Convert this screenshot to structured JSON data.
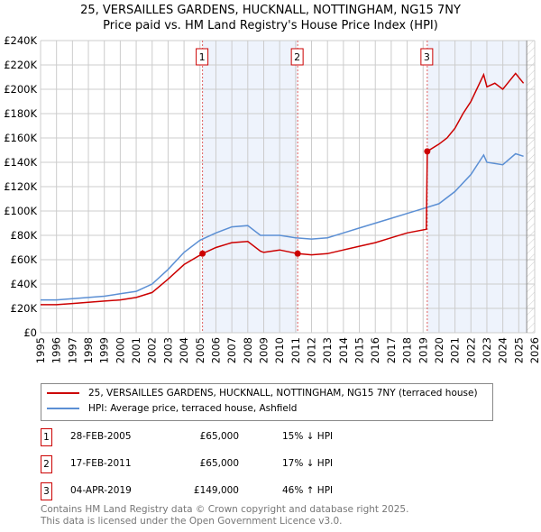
{
  "chart_data": {
    "type": "line",
    "title": "25, VERSAILLES GARDENS, HUCKNALL, NOTTINGHAM, NG15 7NY",
    "subtitle": "Price paid vs. HM Land Registry's House Price Index (HPI)",
    "xlim": [
      1995,
      2026
    ],
    "ylim": [
      0,
      240000
    ],
    "x_ticks": [
      "1995",
      "1996",
      "1997",
      "1998",
      "1999",
      "2000",
      "2001",
      "2002",
      "2003",
      "2004",
      "2005",
      "2006",
      "2007",
      "2008",
      "2009",
      "2010",
      "2011",
      "2012",
      "2013",
      "2014",
      "2015",
      "2016",
      "2017",
      "2018",
      "2019",
      "2020",
      "2021",
      "2022",
      "2023",
      "2024",
      "2025",
      "2026"
    ],
    "y_ticks": [
      "£0",
      "£20K",
      "£40K",
      "£60K",
      "£80K",
      "£100K",
      "£120K",
      "£140K",
      "£160K",
      "£180K",
      "£200K",
      "£220K",
      "£240K"
    ],
    "series": [
      {
        "name": "25, VERSAILLES GARDENS, HUCKNALL, NOTTINGHAM, NG15 7NY (terraced house)",
        "color": "#cc0000",
        "x": [
          1995,
          1996,
          1997,
          1998,
          1999,
          2000,
          2001,
          2002,
          2003,
          2004,
          2005.16,
          2006,
          2007,
          2008,
          2008.8,
          2009,
          2010,
          2011.13,
          2012,
          2013,
          2014,
          2015,
          2016,
          2017,
          2018,
          2019.2,
          2019.26,
          2020,
          2020.5,
          2021,
          2021.5,
          2022,
          2022.8,
          2023,
          2023.5,
          2024,
          2024.8,
          2025.3
        ],
        "y": [
          23000,
          23000,
          24000,
          25000,
          26000,
          27000,
          29000,
          33000,
          44000,
          56000,
          65000,
          70000,
          74000,
          75000,
          67000,
          66000,
          68000,
          65000,
          64000,
          65000,
          68000,
          71000,
          74000,
          78000,
          82000,
          85000,
          149000,
          155000,
          160000,
          168000,
          180000,
          190000,
          212000,
          202000,
          205000,
          200000,
          213000,
          205000
        ]
      },
      {
        "name": "HPI: Average price, terraced house, Ashfield",
        "color": "#5b8fd4",
        "x": [
          1995,
          1996,
          1997,
          1998,
          1999,
          2000,
          2001,
          2002,
          2003,
          2004,
          2005,
          2006,
          2007,
          2008,
          2008.8,
          2009,
          2010,
          2011,
          2012,
          2013,
          2014,
          2015,
          2016,
          2017,
          2018,
          2019,
          2020,
          2021,
          2022,
          2022.8,
          2023,
          2024,
          2024.8,
          2025.3
        ],
        "y": [
          27000,
          27000,
          28000,
          29000,
          30000,
          32000,
          34000,
          40000,
          52000,
          66000,
          76000,
          82000,
          87000,
          88000,
          80000,
          80000,
          80000,
          78000,
          77000,
          78000,
          82000,
          86000,
          90000,
          94000,
          98000,
          102000,
          106000,
          116000,
          130000,
          146000,
          140000,
          138000,
          147000,
          145000
        ]
      }
    ],
    "sales": [
      {
        "label": "1",
        "x": 2005.16,
        "y": 65000,
        "date": "28-FEB-2005",
        "price": "£65,000",
        "delta": "15% ↓ HPI"
      },
      {
        "label": "2",
        "x": 2011.13,
        "y": 65000,
        "date": "17-FEB-2011",
        "price": "£65,000",
        "delta": "17% ↓ HPI"
      },
      {
        "label": "3",
        "x": 2019.26,
        "y": 149000,
        "date": "04-APR-2019",
        "price": "£149,000",
        "delta": "46% ↑ HPI"
      }
    ]
  },
  "footer": [
    "Contains HM Land Registry data © Crown copyright and database right 2025.",
    "This data is licensed under the Open Government Licence v3.0."
  ]
}
